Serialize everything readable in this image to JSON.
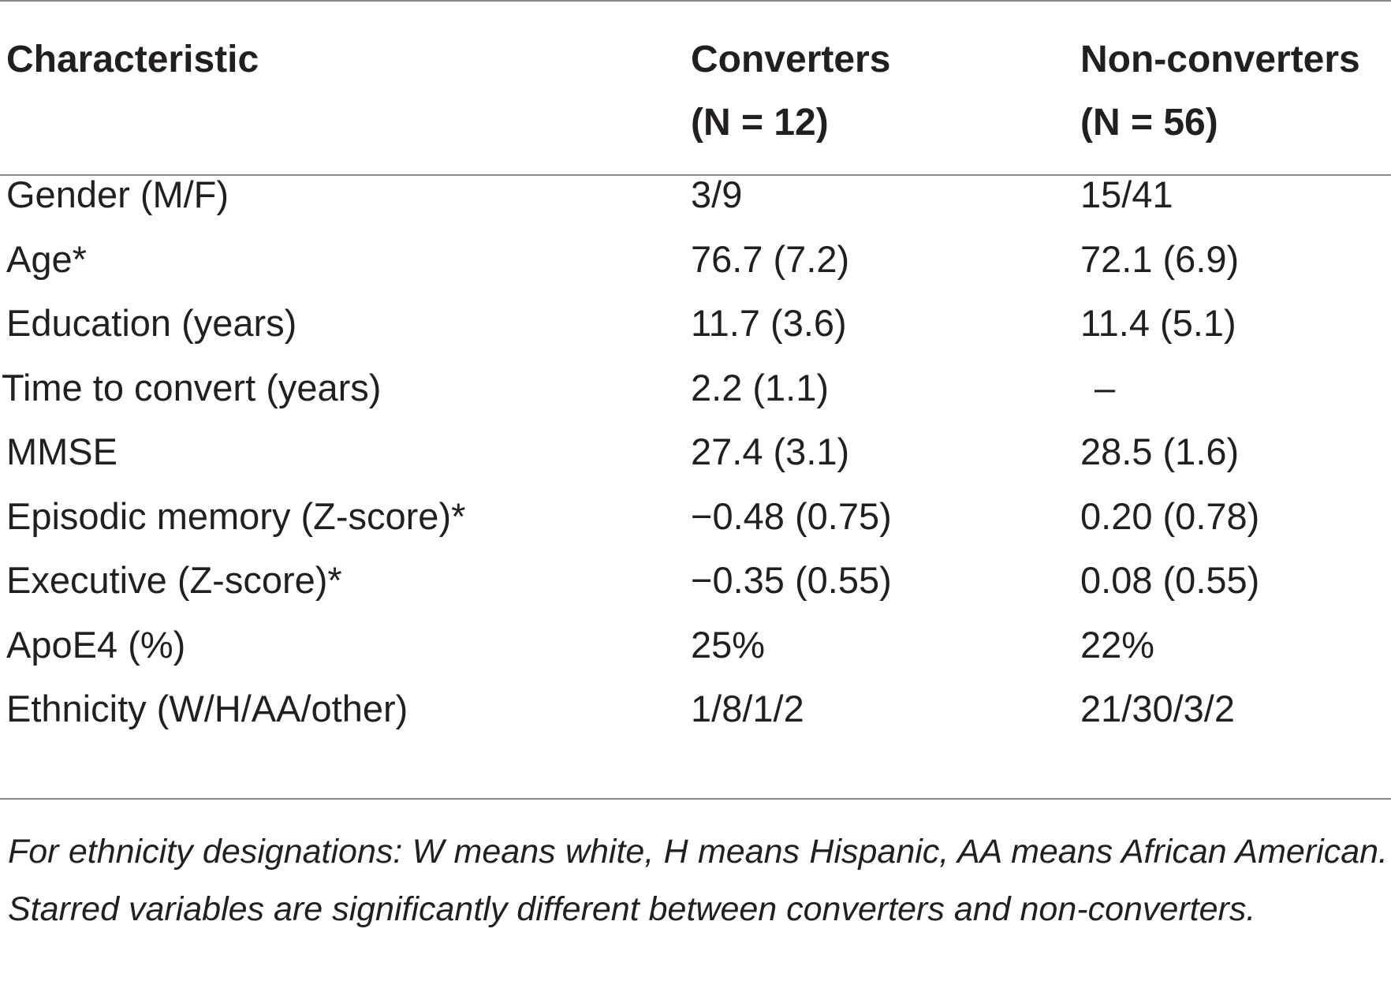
{
  "table": {
    "headers": {
      "characteristic": "Characteristic",
      "converters_line1": "Converters",
      "converters_line2": "(N = 12)",
      "nonconverters_line1": "Non-converters",
      "nonconverters_line2": "(N = 56)"
    },
    "rows": [
      {
        "label": "Gender (M/F)",
        "converters": "3/9",
        "nonconverters": "15/41"
      },
      {
        "label": "Age*",
        "converters": "76.7 (7.2)",
        "nonconverters": "72.1 (6.9)"
      },
      {
        "label": "Education (years)",
        "converters": "11.7 (3.6)",
        "nonconverters": "11.4 (5.1)"
      },
      {
        "label": "Time to convert (years)",
        "converters": "2.2 (1.1)",
        "nonconverters": "–"
      },
      {
        "label": "MMSE",
        "converters": "27.4 (3.1)",
        "nonconverters": "28.5 (1.6)"
      },
      {
        "label": "Episodic memory (Z-score)*",
        "converters": "−0.48 (0.75)",
        "nonconverters": "0.20 (0.78)"
      },
      {
        "label": "Executive (Z-score)*",
        "converters": "−0.35 (0.55)",
        "nonconverters": "0.08 (0.55)"
      },
      {
        "label": "ApoE4 (%)",
        "converters": "25%",
        "nonconverters": "22%"
      },
      {
        "label": "Ethnicity (W/H/AA/other)",
        "converters": "1/8/1/2",
        "nonconverters": "21/30/3/2"
      }
    ],
    "footnote": "For ethnicity designations: W means white, H means Hispanic, AA means African American. Starred variables are significantly different between converters and non-converters."
  }
}
